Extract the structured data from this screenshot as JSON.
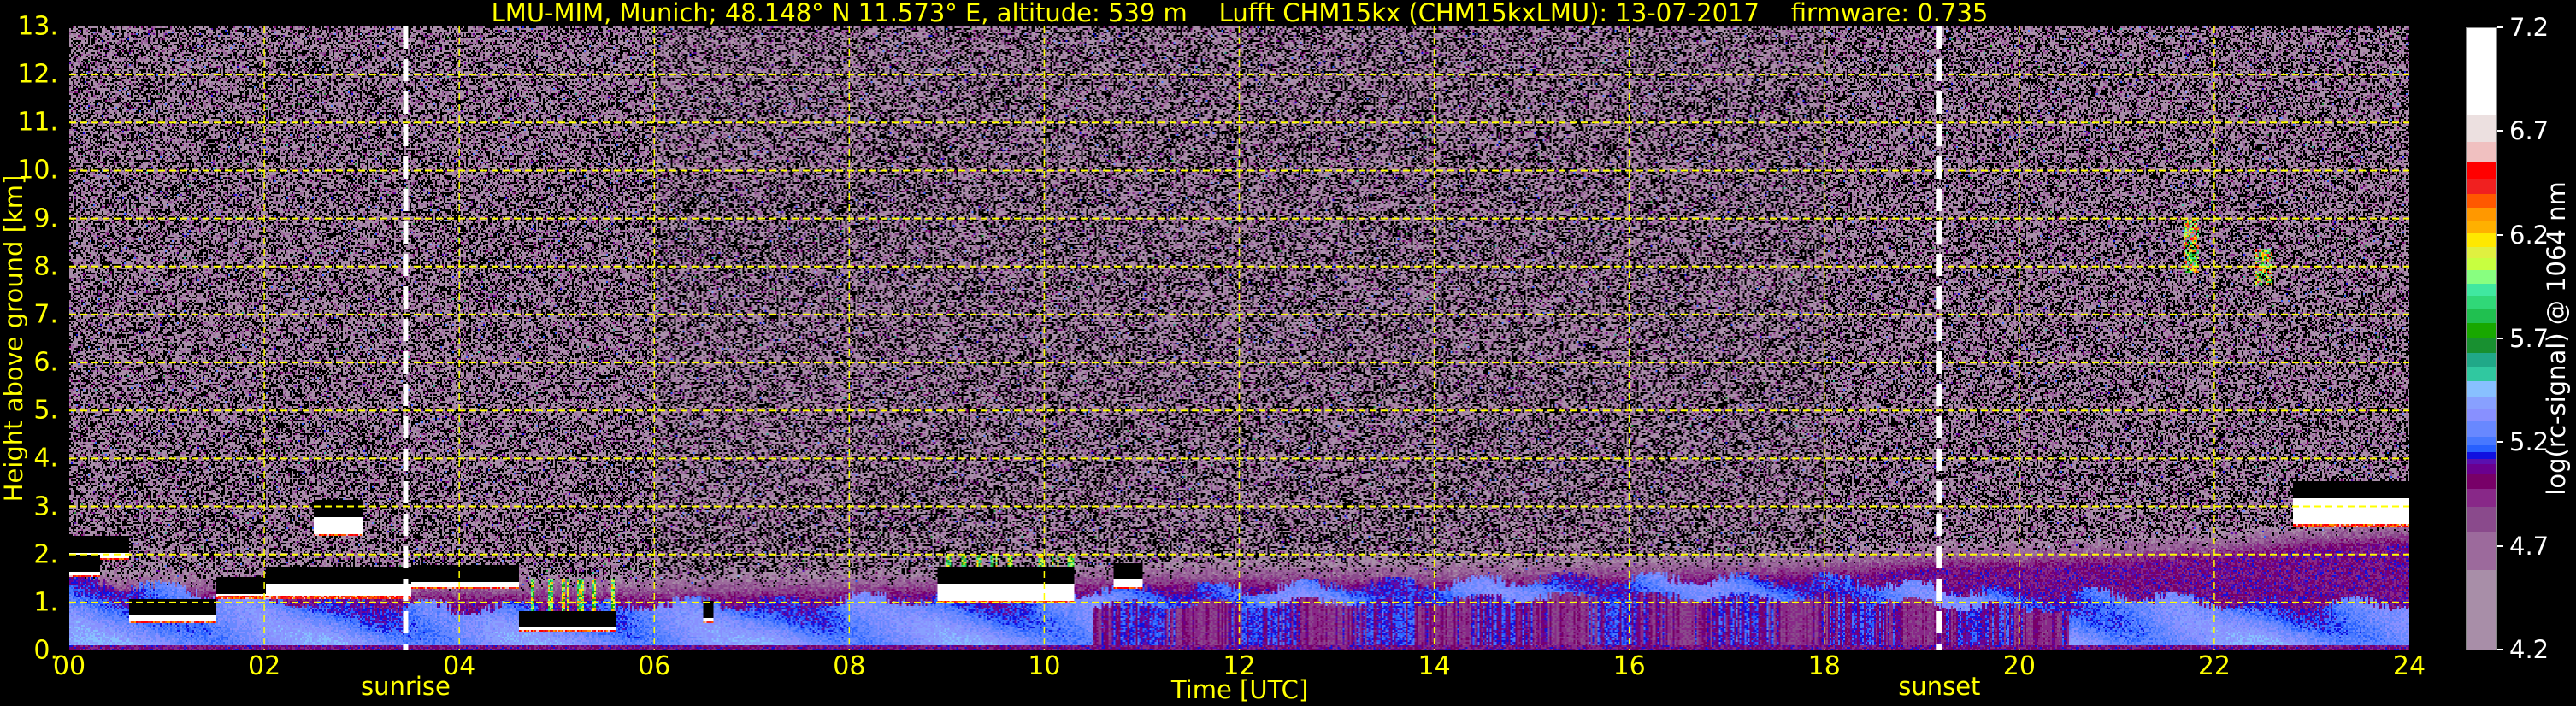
{
  "title": "LMU-MIM, Munich; 48.148° N 11.573° E, altitude: 539 m    Lufft CHM15kx (CHM15kxLMU): 13-07-2017    firmware: 0.735",
  "chart_data": {
    "type": "heatmap",
    "title": "LMU-MIM, Munich; 48.148° N 11.573° E, altitude: 539 m    Lufft CHM15kx (CHM15kxLMU): 13-07-2017    firmware: 0.735",
    "xlabel": "Time [UTC]",
    "ylabel": "Height above ground [km]",
    "xlim": [
      0,
      24
    ],
    "ylim": [
      0,
      13
    ],
    "x_ticks": [
      "00",
      "02",
      "04",
      "06",
      "08",
      "10",
      "12",
      "14",
      "16",
      "18",
      "20",
      "22",
      "24"
    ],
    "x_tick_values": [
      0,
      2,
      4,
      6,
      8,
      10,
      12,
      14,
      16,
      18,
      20,
      22,
      24
    ],
    "y_ticks": [
      "0.",
      "1.",
      "2.",
      "3.",
      "4.",
      "5.",
      "6.",
      "7.",
      "8.",
      "9.",
      "10.",
      "11.",
      "12.",
      "13."
    ],
    "y_tick_values": [
      0,
      1,
      2,
      3,
      4,
      5,
      6,
      7,
      8,
      9,
      10,
      11,
      12,
      13
    ],
    "grid": true,
    "grid_color": "#ffff00",
    "events": [
      {
        "label": "sunrise",
        "time": 3.45
      },
      {
        "label": "sunset",
        "time": 19.18
      }
    ],
    "colorbar": {
      "label": "log(rc-signal) @ 1064 nm",
      "range": [
        4.2,
        7.2
      ],
      "ticks": [
        "4.2",
        "4.7",
        "5.2",
        "5.7",
        "6.2",
        "6.7",
        "7.2"
      ],
      "tick_values": [
        4.2,
        4.7,
        5.2,
        5.7,
        6.2,
        6.7,
        7.2
      ],
      "levels": [
        {
          "from": 4.2,
          "to": 4.59,
          "color": "#a88ea8"
        },
        {
          "from": 4.59,
          "to": 4.774,
          "color": "#9c6a9c"
        },
        {
          "from": 4.774,
          "to": 4.893,
          "color": "#8a4a8c"
        },
        {
          "from": 4.893,
          "to": 4.98,
          "color": "#882888"
        },
        {
          "from": 4.98,
          "to": 5.056,
          "color": "#780068"
        },
        {
          "from": 5.056,
          "to": 5.099,
          "color": "#6a0090"
        },
        {
          "from": 5.099,
          "to": 5.127,
          "color": "#5a10b0"
        },
        {
          "from": 5.127,
          "to": 5.157,
          "color": "#1010e0"
        },
        {
          "from": 5.157,
          "to": 5.19,
          "color": "#2860ff"
        },
        {
          "from": 5.19,
          "to": 5.233,
          "color": "#4878ff"
        },
        {
          "from": 5.233,
          "to": 5.305,
          "color": "#6888ff"
        },
        {
          "from": 5.305,
          "to": 5.37,
          "color": "#8890ff"
        },
        {
          "from": 5.37,
          "to": 5.428,
          "color": "#88a0ff"
        },
        {
          "from": 5.428,
          "to": 5.5,
          "color": "#88c0ff"
        },
        {
          "from": 5.5,
          "to": 5.571,
          "color": "#30c8a0"
        },
        {
          "from": 5.571,
          "to": 5.636,
          "color": "#20a888"
        },
        {
          "from": 5.636,
          "to": 5.71,
          "color": "#189030"
        },
        {
          "from": 5.71,
          "to": 5.779,
          "color": "#18a800"
        },
        {
          "from": 5.779,
          "to": 5.846,
          "color": "#20c050"
        },
        {
          "from": 5.846,
          "to": 5.911,
          "color": "#30d878"
        },
        {
          "from": 5.911,
          "to": 5.97,
          "color": "#40e8a0"
        },
        {
          "from": 5.97,
          "to": 6.035,
          "color": "#88ff80"
        },
        {
          "from": 6.035,
          "to": 6.095,
          "color": "#c8ff40"
        },
        {
          "from": 6.095,
          "to": 6.149,
          "color": "#e0f040"
        },
        {
          "from": 6.149,
          "to": 6.214,
          "color": "#ffe800"
        },
        {
          "from": 6.214,
          "to": 6.273,
          "color": "#ffb000"
        },
        {
          "from": 6.273,
          "to": 6.338,
          "color": "#ff9800"
        },
        {
          "from": 6.338,
          "to": 6.403,
          "color": "#ff5800"
        },
        {
          "from": 6.403,
          "to": 6.474,
          "color": "#f02020"
        },
        {
          "from": 6.474,
          "to": 6.557,
          "color": "#ff0000"
        },
        {
          "from": 6.557,
          "to": 6.652,
          "color": "#f0c0c0"
        },
        {
          "from": 6.652,
          "to": 6.782,
          "color": "#ece0e0"
        },
        {
          "from": 6.782,
          "to": 7.2,
          "color": "#ffffff"
        }
      ]
    },
    "aerosol_layer_top_km": [
      [
        0,
        1.5
      ],
      [
        1,
        1.3
      ],
      [
        2,
        1.1
      ],
      [
        3,
        1.0
      ],
      [
        4,
        0.9
      ],
      [
        5,
        0.9
      ],
      [
        6,
        1.0
      ],
      [
        7,
        1.0
      ],
      [
        8,
        1.1
      ],
      [
        9,
        1.1
      ],
      [
        10,
        1.2
      ],
      [
        11,
        1.3
      ],
      [
        12,
        1.3
      ],
      [
        13,
        1.4
      ],
      [
        14,
        1.4
      ],
      [
        15,
        1.5
      ],
      [
        16,
        1.5
      ],
      [
        17,
        1.5
      ],
      [
        18,
        1.5
      ],
      [
        19.2,
        1.3
      ],
      [
        20,
        1.2
      ],
      [
        21,
        1.2
      ],
      [
        22,
        1.0
      ],
      [
        23,
        1.0
      ],
      [
        24,
        1.0
      ]
    ],
    "residual_layer_top_km": [
      [
        0,
        1.7
      ],
      [
        3,
        1.6
      ],
      [
        6,
        1.6
      ],
      [
        8,
        1.7
      ],
      [
        10,
        1.8
      ],
      [
        12,
        1.9
      ],
      [
        14,
        1.9
      ],
      [
        16,
        2.0
      ],
      [
        18,
        2.1
      ],
      [
        19.2,
        2.3
      ],
      [
        20,
        2.3
      ],
      [
        22,
        2.5
      ],
      [
        23,
        2.7
      ],
      [
        24,
        2.8
      ]
    ],
    "cloud_layers": [
      {
        "start": 0.0,
        "end": 0.6,
        "base_km": 1.9,
        "top_km": 2.05
      },
      {
        "start": 0.0,
        "end": 0.3,
        "base_km": 1.55,
        "top_km": 1.65
      },
      {
        "start": 0.6,
        "end": 1.5,
        "base_km": 0.6,
        "top_km": 0.75
      },
      {
        "start": 1.5,
        "end": 2.0,
        "base_km": 1.1,
        "top_km": 1.2
      },
      {
        "start": 2.0,
        "end": 3.5,
        "base_km": 1.1,
        "top_km": 1.4
      },
      {
        "start": 2.5,
        "end": 3.0,
        "base_km": 2.4,
        "top_km": 2.8
      },
      {
        "start": 3.5,
        "end": 4.6,
        "base_km": 1.3,
        "top_km": 1.45
      },
      {
        "start": 4.6,
        "end": 5.6,
        "base_km": 0.4,
        "top_km": 0.5
      },
      {
        "start": 6.5,
        "end": 6.6,
        "base_km": 0.6,
        "top_km": 0.7
      },
      {
        "start": 8.9,
        "end": 10.3,
        "base_km": 1.0,
        "top_km": 1.4
      },
      {
        "start": 10.7,
        "end": 11.0,
        "base_km": 1.3,
        "top_km": 1.5
      },
      {
        "start": 22.8,
        "end": 24.0,
        "base_km": 2.6,
        "top_km": 3.2
      }
    ],
    "convective_plumes": [
      {
        "start": 4.6,
        "end": 5.6,
        "base_km": 0.5,
        "top_km": 1.5
      },
      {
        "start": 8.9,
        "end": 10.3,
        "base_km": 1.3,
        "top_km": 2.0
      }
    ],
    "cirrus": [
      {
        "time": 21.75,
        "base_km": 7.9,
        "top_km": 9.0
      },
      {
        "time": 22.5,
        "base_km": 7.6,
        "top_km": 8.4
      }
    ]
  }
}
